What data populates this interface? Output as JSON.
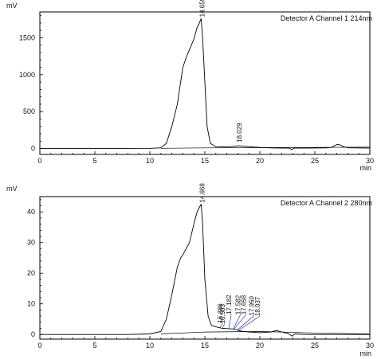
{
  "chart_data": [
    {
      "type": "line",
      "title": "Detector A Channel 1 214nm",
      "ylabel": "mV",
      "xlabel": "min",
      "xlim": [
        0,
        30
      ],
      "ylim": [
        -80,
        1850
      ],
      "xticks": [
        0,
        5,
        10,
        15,
        20,
        25,
        30
      ],
      "yticks": [
        0,
        500,
        1000,
        1500
      ],
      "grid": false,
      "series": [
        {
          "x": [
            0,
            8,
            10,
            11,
            11.5,
            12,
            12.5,
            12.8,
            13,
            13.3,
            13.6,
            14,
            14.3,
            14.5,
            14.659,
            14.8,
            15,
            15.2,
            15.5,
            16,
            17,
            18,
            18.029,
            19,
            20,
            21,
            22,
            22.7,
            22.9,
            23.1,
            24,
            26,
            26.5,
            27,
            27.3,
            27.6,
            28,
            30
          ],
          "values": [
            0,
            0,
            2,
            10,
            70,
            300,
            600,
            900,
            1100,
            1230,
            1340,
            1480,
            1640,
            1700,
            1760,
            1500,
            900,
            300,
            70,
            25,
            20,
            35,
            40,
            25,
            15,
            8,
            5,
            5,
            -15,
            5,
            5,
            8,
            15,
            55,
            50,
            25,
            10,
            5
          ]
        },
        {
          "x": [
            11,
            15,
            20,
            25,
            30
          ],
          "values": [
            3,
            8,
            12,
            15,
            18
          ]
        }
      ],
      "peak_labels": [
        {
          "x": 14.659,
          "y": 1760,
          "label": "14.659"
        },
        {
          "x": 18.029,
          "y": 40,
          "label": "18.029"
        }
      ]
    },
    {
      "type": "line",
      "title": "Detector A Channel 2 280nm",
      "ylabel": "mV",
      "xlabel": "min",
      "xlim": [
        0,
        30
      ],
      "ylim": [
        -1.5,
        45
      ],
      "xticks": [
        0,
        5,
        10,
        15,
        20,
        25,
        30
      ],
      "yticks": [
        0,
        10,
        20,
        30,
        40
      ],
      "grid": false,
      "series": [
        {
          "x": [
            0,
            8,
            10,
            11,
            11.5,
            12,
            12.5,
            12.8,
            13,
            13.3,
            13.6,
            14,
            14.3,
            14.5,
            14.668,
            14.8,
            15,
            15.3,
            15.6,
            16,
            16.386,
            16.583,
            17.182,
            17.582,
            17.658,
            17.95,
            18.037,
            18.5,
            19,
            20,
            21,
            21.5,
            22,
            22.6,
            22.9,
            23.2,
            24,
            26,
            28,
            30
          ],
          "values": [
            0,
            0,
            0.2,
            1,
            5,
            13,
            22,
            25,
            26,
            28,
            30,
            36,
            40,
            41.5,
            42.5,
            36,
            18,
            6,
            3,
            2.5,
            2.2,
            2.0,
            1.9,
            1.8,
            1.8,
            1.5,
            1.3,
            1.0,
            0.8,
            0.6,
            0.8,
            1.3,
            0.8,
            0.3,
            -0.5,
            0.2,
            0,
            0,
            0,
            0
          ]
        },
        {
          "x": [
            11,
            15,
            20,
            25,
            30
          ],
          "values": [
            0.2,
            0.8,
            1.0,
            0.5,
            0.2
          ]
        }
      ],
      "peak_labels": [
        {
          "x": 14.668,
          "y": 42.5,
          "label": "14.668"
        },
        {
          "x": 16.386,
          "y": 2.2,
          "label": "16.386"
        },
        {
          "x": 16.583,
          "y": 2.0,
          "label": "16.583"
        },
        {
          "x": 17.182,
          "y": 1.9,
          "label": "17.182"
        },
        {
          "x": 17.582,
          "y": 1.8,
          "label": "17.582"
        },
        {
          "x": 17.658,
          "y": 1.8,
          "label": "17.658"
        },
        {
          "x": 17.95,
          "y": 1.5,
          "label": "17.950"
        },
        {
          "x": 18.037,
          "y": 1.3,
          "label": "18.037"
        }
      ]
    }
  ]
}
